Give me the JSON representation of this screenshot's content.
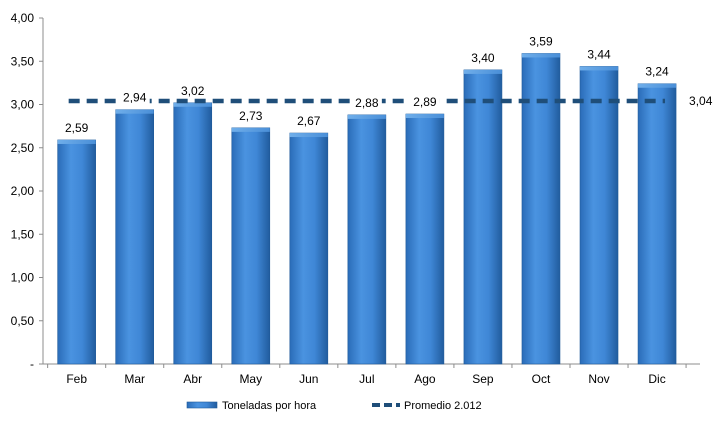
{
  "chart_data": {
    "type": "bar",
    "categories": [
      "Feb",
      "Mar",
      "Abr",
      "May",
      "Jun",
      "Jul",
      "Ago",
      "Sep",
      "Oct",
      "Nov",
      "Dic"
    ],
    "series": [
      {
        "name": "Toneladas por hora",
        "type": "bar",
        "values": [
          2.59,
          2.94,
          3.02,
          2.73,
          2.67,
          2.88,
          2.89,
          3.4,
          3.59,
          3.44,
          3.24
        ],
        "labels": [
          "2,59",
          "2,94",
          "3,02",
          "2,73",
          "2,67",
          "2,88",
          "2,89",
          "3,40",
          "3,59",
          "3,44",
          "3,24"
        ],
        "color": "#3F87D6"
      },
      {
        "name": "Promedio 2.012",
        "type": "line",
        "style": "dashed",
        "value": 3.04,
        "label": "3,04",
        "color": "#1F4E79"
      }
    ],
    "y_ticks": [
      {
        "value": 0,
        "label": "-"
      },
      {
        "value": 0.5,
        "label": "0,50"
      },
      {
        "value": 1.0,
        "label": "1,00"
      },
      {
        "value": 1.5,
        "label": "1,50"
      },
      {
        "value": 2.0,
        "label": "2,00"
      },
      {
        "value": 2.5,
        "label": "2,50"
      },
      {
        "value": 3.0,
        "label": "3,00"
      },
      {
        "value": 3.5,
        "label": "3,50"
      },
      {
        "value": 4.0,
        "label": "4,00"
      }
    ],
    "ylim": [
      0,
      4
    ],
    "grid": false,
    "legend_position": "bottom",
    "title": "",
    "xlabel": "",
    "ylabel": ""
  }
}
